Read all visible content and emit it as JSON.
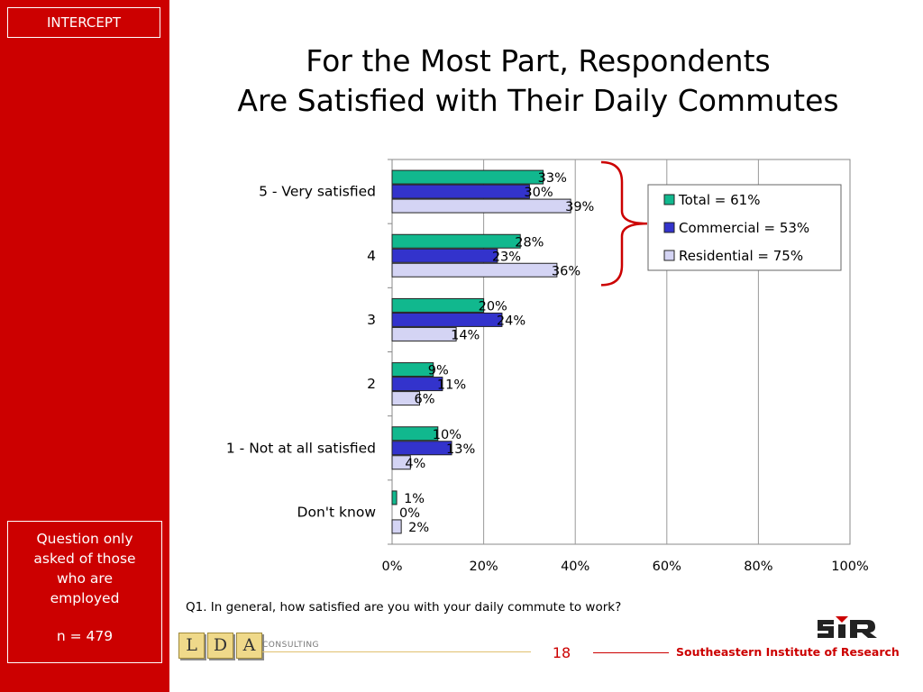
{
  "sidebar": {
    "section_tag": "INTERCEPT",
    "note_lines": [
      "Question only",
      "asked of those",
      "who are",
      "employed"
    ],
    "sample": "n = 479"
  },
  "title": {
    "line1": "For the Most Part, Respondents",
    "line2": "Are Satisfied with Their Daily Commutes"
  },
  "chart_data": {
    "type": "bar",
    "orientation": "horizontal",
    "categories": [
      "5 - Very satisfied",
      "4",
      "3",
      "2",
      "1 - Not at all satisfied",
      "Don't know"
    ],
    "series": [
      {
        "name": "Total = 61%",
        "values": [
          33,
          28,
          20,
          9,
          10,
          1
        ],
        "color": "#11b88e"
      },
      {
        "name": "Commercial = 53%",
        "values": [
          30,
          23,
          24,
          11,
          13,
          0
        ],
        "color": "#3333cc"
      },
      {
        "name": "Residential = 75%",
        "values": [
          39,
          36,
          14,
          6,
          4,
          2
        ],
        "color": "#d4d4f4"
      }
    ],
    "value_suffix": "%",
    "x_ticks": [
      "0%",
      "20%",
      "40%",
      "60%",
      "80%",
      "100%"
    ],
    "xlim": [
      0,
      100
    ],
    "grid": true,
    "legend_position": "top-right",
    "bracket_color": "#cc0000"
  },
  "footer": {
    "question": "Q1. In general, how satisfied are you with your daily commute to work?",
    "lda_letters": [
      "L",
      "D",
      "A"
    ],
    "consulting": "CONSULTING",
    "page": "18",
    "institute": "Southeastern Institute of Research"
  }
}
